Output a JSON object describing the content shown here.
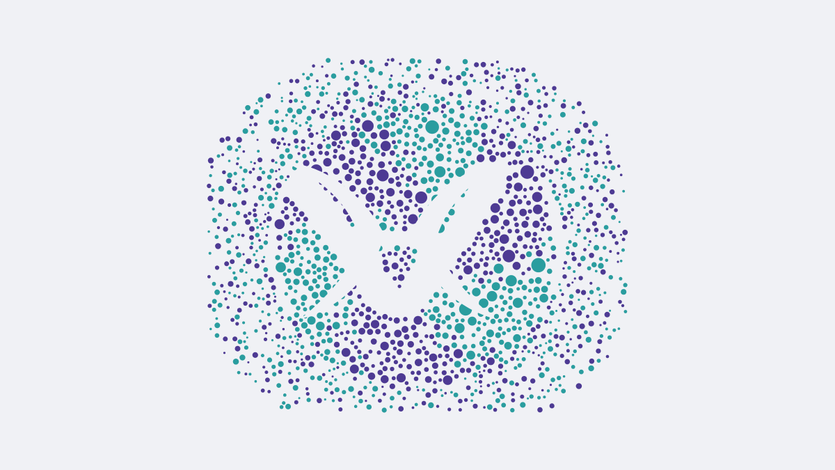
{
  "artwork": {
    "subject": "dot-logo-emblem",
    "colors": {
      "background": "#f0f1f5",
      "purple": "#4d3a93",
      "teal": "#2a9d9f",
      "emblem": "#f0f1f5"
    }
  }
}
